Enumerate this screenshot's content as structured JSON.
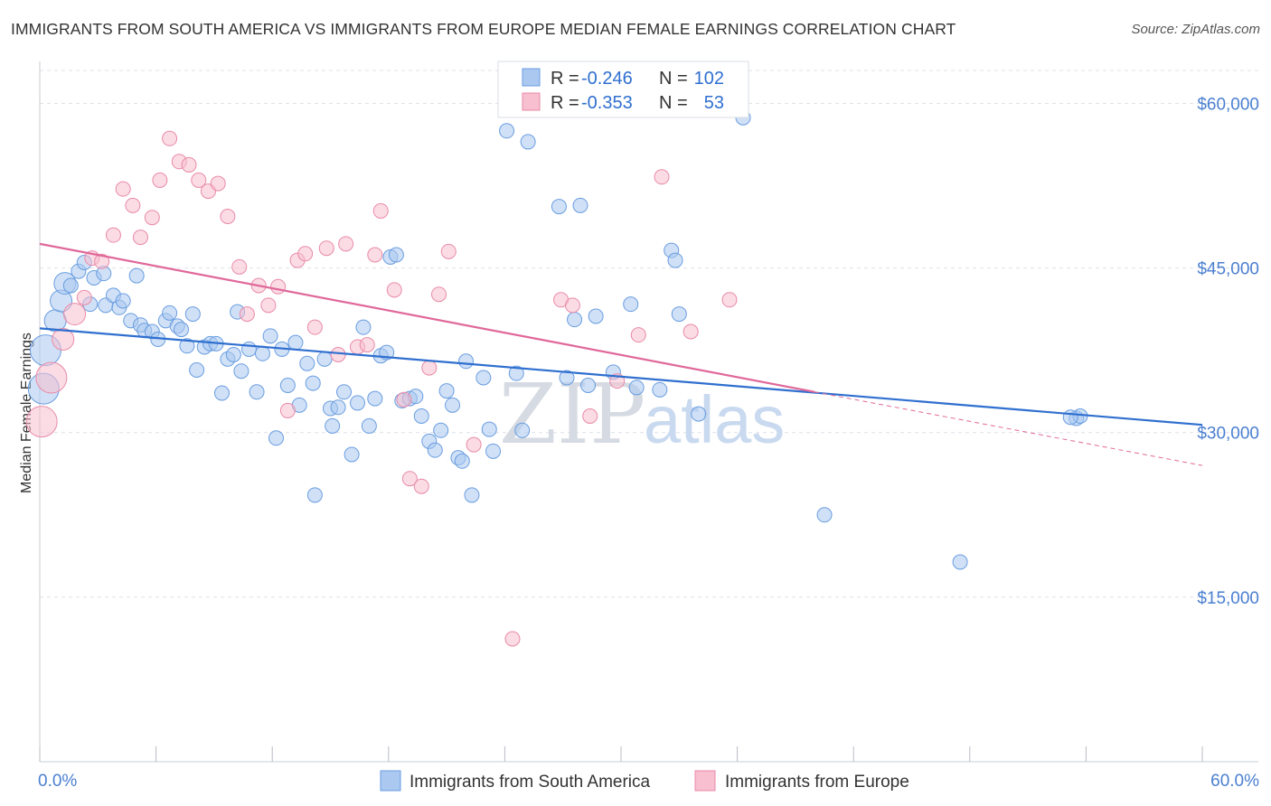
{
  "title": "IMMIGRANTS FROM SOUTH AMERICA VS IMMIGRANTS FROM EUROPE MEDIAN FEMALE EARNINGS CORRELATION CHART",
  "source": "Source: ZipAtlas.com",
  "watermark": {
    "zip": "ZIP",
    "atlas": "atlas"
  },
  "colors": {
    "blue_fill": "#aac8f0",
    "blue_stroke": "#6a9de0",
    "blue_line": "#2f6fcf",
    "pink_fill": "#f7bfd0",
    "pink_stroke": "#e98aa8",
    "pink_line": "#e0689a",
    "tick_text": "#4a7fd0",
    "grid": "#dde1e8"
  },
  "stats": [
    {
      "r_label": "R =",
      "r_value": "-0.246",
      "n_label": "N =",
      "n_value": "102"
    },
    {
      "r_label": "R =",
      "r_value": "-0.353",
      "n_label": "N =",
      "n_value": "53"
    }
  ],
  "legend": [
    {
      "label": "Immigrants from South America"
    },
    {
      "label": "Immigrants from Europe"
    }
  ],
  "chart_data": {
    "type": "scatter",
    "ylabel": "Median Female Earnings",
    "xlabel": "",
    "xlim": [
      0,
      60
    ],
    "ylim": [
      0,
      63000
    ],
    "x_tick_labels": [
      "0.0%",
      "60.0%"
    ],
    "y_ticks": [
      15000,
      30000,
      45000,
      60000
    ],
    "y_tick_labels": [
      "$15,000",
      "$30,000",
      "$45,000",
      "$60,000"
    ],
    "grid": true,
    "series": [
      {
        "name": "Immigrants from South America",
        "trend": {
          "x": [
            0,
            60
          ],
          "y": [
            39500,
            30700
          ],
          "style": "solid"
        },
        "points": [
          [
            0.3,
            37500,
            3
          ],
          [
            0.2,
            34000,
            3
          ],
          [
            0.8,
            40200,
            2
          ],
          [
            1.1,
            42000,
            2
          ],
          [
            1.3,
            43600,
            2
          ],
          [
            1.6,
            43400,
            1
          ],
          [
            2.0,
            44700,
            1
          ],
          [
            2.3,
            45500,
            1
          ],
          [
            2.6,
            41700,
            1
          ],
          [
            2.8,
            44100,
            1
          ],
          [
            3.3,
            44500,
            1
          ],
          [
            3.4,
            41600,
            1
          ],
          [
            3.8,
            42500,
            1
          ],
          [
            4.1,
            41400,
            1
          ],
          [
            4.3,
            42000,
            1
          ],
          [
            4.7,
            40200,
            1
          ],
          [
            5.0,
            44300,
            1
          ],
          [
            5.2,
            39800,
            1
          ],
          [
            5.4,
            39300,
            1
          ],
          [
            5.8,
            39200,
            1
          ],
          [
            6.1,
            38500,
            1
          ],
          [
            6.5,
            40200,
            1
          ],
          [
            6.7,
            40900,
            1
          ],
          [
            7.1,
            39700,
            1
          ],
          [
            7.3,
            39400,
            1
          ],
          [
            7.6,
            37900,
            1
          ],
          [
            7.9,
            40800,
            1
          ],
          [
            8.1,
            35700,
            1
          ],
          [
            8.5,
            37800,
            1
          ],
          [
            8.8,
            38100,
            1
          ],
          [
            9.1,
            38100,
            1
          ],
          [
            9.4,
            33600,
            1
          ],
          [
            9.7,
            36700,
            1
          ],
          [
            10.0,
            37100,
            1
          ],
          [
            10.4,
            35600,
            1
          ],
          [
            10.2,
            41000,
            1
          ],
          [
            10.8,
            37600,
            1
          ],
          [
            11.2,
            33700,
            1
          ],
          [
            11.5,
            37200,
            1
          ],
          [
            11.9,
            38800,
            1
          ],
          [
            12.2,
            29500,
            1
          ],
          [
            12.5,
            37600,
            1
          ],
          [
            12.8,
            34300,
            1
          ],
          [
            13.2,
            38200,
            1
          ],
          [
            13.4,
            32500,
            1
          ],
          [
            13.8,
            36300,
            1
          ],
          [
            14.1,
            34500,
            1
          ],
          [
            14.2,
            24300,
            1
          ],
          [
            14.7,
            36700,
            1
          ],
          [
            15.0,
            32200,
            1
          ],
          [
            15.1,
            30600,
            1
          ],
          [
            15.4,
            32300,
            1
          ],
          [
            15.7,
            33700,
            1
          ],
          [
            16.1,
            28000,
            1
          ],
          [
            16.4,
            32700,
            1
          ],
          [
            16.7,
            39600,
            1
          ],
          [
            17.0,
            30600,
            1
          ],
          [
            17.3,
            33100,
            1
          ],
          [
            17.6,
            37000,
            1
          ],
          [
            17.9,
            37300,
            1
          ],
          [
            18.1,
            46000,
            1
          ],
          [
            18.4,
            46200,
            1
          ],
          [
            18.7,
            32900,
            1
          ],
          [
            19.1,
            33100,
            1
          ],
          [
            19.4,
            33300,
            1
          ],
          [
            19.7,
            31500,
            1
          ],
          [
            20.1,
            29200,
            1
          ],
          [
            20.4,
            28400,
            1
          ],
          [
            20.7,
            30200,
            1
          ],
          [
            21.0,
            33800,
            1
          ],
          [
            21.3,
            32500,
            1
          ],
          [
            21.6,
            27700,
            1
          ],
          [
            21.8,
            27400,
            1
          ],
          [
            22.0,
            36500,
            1
          ],
          [
            22.3,
            24300,
            1
          ],
          [
            22.9,
            35000,
            1
          ],
          [
            23.2,
            30300,
            1
          ],
          [
            23.4,
            28300,
            1
          ],
          [
            24.1,
            57500,
            1
          ],
          [
            24.6,
            35400,
            1
          ],
          [
            24.9,
            30200,
            1
          ],
          [
            25.2,
            56500,
            1
          ],
          [
            26.8,
            50600,
            1
          ],
          [
            27.2,
            35000,
            1
          ],
          [
            27.6,
            40300,
            1
          ],
          [
            27.9,
            50700,
            1
          ],
          [
            28.3,
            34300,
            1
          ],
          [
            28.7,
            40600,
            1
          ],
          [
            29.6,
            35500,
            1
          ],
          [
            30.5,
            41700,
            1
          ],
          [
            30.8,
            34100,
            1
          ],
          [
            32.0,
            33900,
            1
          ],
          [
            32.6,
            46600,
            1
          ],
          [
            32.8,
            45700,
            1
          ],
          [
            33.0,
            40800,
            1
          ],
          [
            34.0,
            31700,
            1
          ],
          [
            36.3,
            58700,
            1
          ],
          [
            40.5,
            22500,
            1
          ],
          [
            47.5,
            18200,
            1
          ],
          [
            53.5,
            31300,
            1
          ],
          [
            53.7,
            31500,
            1
          ],
          [
            53.2,
            31400,
            1
          ]
        ]
      },
      {
        "name": "Immigrants from Europe",
        "trend": {
          "x": [
            0,
            40
          ],
          "y": [
            47200,
            33700
          ],
          "style": "solid",
          "dashed_extension": {
            "x": [
              40,
              60
            ],
            "y": [
              33700,
              27000
            ]
          }
        },
        "points": [
          [
            0.1,
            31000,
            3
          ],
          [
            0.6,
            35000,
            3
          ],
          [
            1.2,
            38500,
            2
          ],
          [
            1.8,
            40800,
            2
          ],
          [
            2.3,
            42300,
            1
          ],
          [
            2.7,
            45900,
            1
          ],
          [
            3.2,
            45600,
            1
          ],
          [
            3.8,
            48000,
            1
          ],
          [
            4.3,
            52200,
            1
          ],
          [
            4.8,
            50700,
            1
          ],
          [
            5.2,
            47800,
            1
          ],
          [
            5.8,
            49600,
            1
          ],
          [
            6.2,
            53000,
            1
          ],
          [
            6.7,
            56800,
            1
          ],
          [
            7.2,
            54700,
            1
          ],
          [
            7.7,
            54400,
            1
          ],
          [
            8.2,
            53000,
            1
          ],
          [
            8.7,
            52000,
            1
          ],
          [
            9.2,
            52700,
            1
          ],
          [
            9.7,
            49700,
            1
          ],
          [
            10.3,
            45100,
            1
          ],
          [
            10.7,
            40800,
            1
          ],
          [
            11.3,
            43400,
            1
          ],
          [
            11.8,
            41600,
            1
          ],
          [
            12.3,
            43300,
            1
          ],
          [
            12.8,
            32000,
            1
          ],
          [
            13.3,
            45700,
            1
          ],
          [
            13.7,
            46300,
            1
          ],
          [
            14.2,
            39600,
            1
          ],
          [
            14.8,
            46800,
            1
          ],
          [
            15.4,
            37100,
            1
          ],
          [
            15.8,
            47200,
            1
          ],
          [
            16.4,
            37800,
            1
          ],
          [
            16.9,
            38000,
            1
          ],
          [
            17.3,
            46200,
            1
          ],
          [
            17.6,
            50200,
            1
          ],
          [
            18.3,
            43000,
            1
          ],
          [
            18.8,
            33000,
            1
          ],
          [
            19.1,
            25800,
            1
          ],
          [
            19.7,
            25100,
            1
          ],
          [
            20.1,
            35900,
            1
          ],
          [
            20.6,
            42600,
            1
          ],
          [
            21.1,
            46500,
            1
          ],
          [
            22.4,
            28900,
            1
          ],
          [
            24.4,
            11200,
            1
          ],
          [
            26.9,
            42100,
            1
          ],
          [
            27.5,
            41600,
            1
          ],
          [
            28.4,
            31500,
            1
          ],
          [
            29.8,
            34700,
            1
          ],
          [
            30.9,
            38900,
            1
          ],
          [
            32.1,
            53300,
            1
          ],
          [
            33.6,
            39200,
            1
          ],
          [
            35.6,
            42100,
            1
          ]
        ]
      }
    ]
  }
}
